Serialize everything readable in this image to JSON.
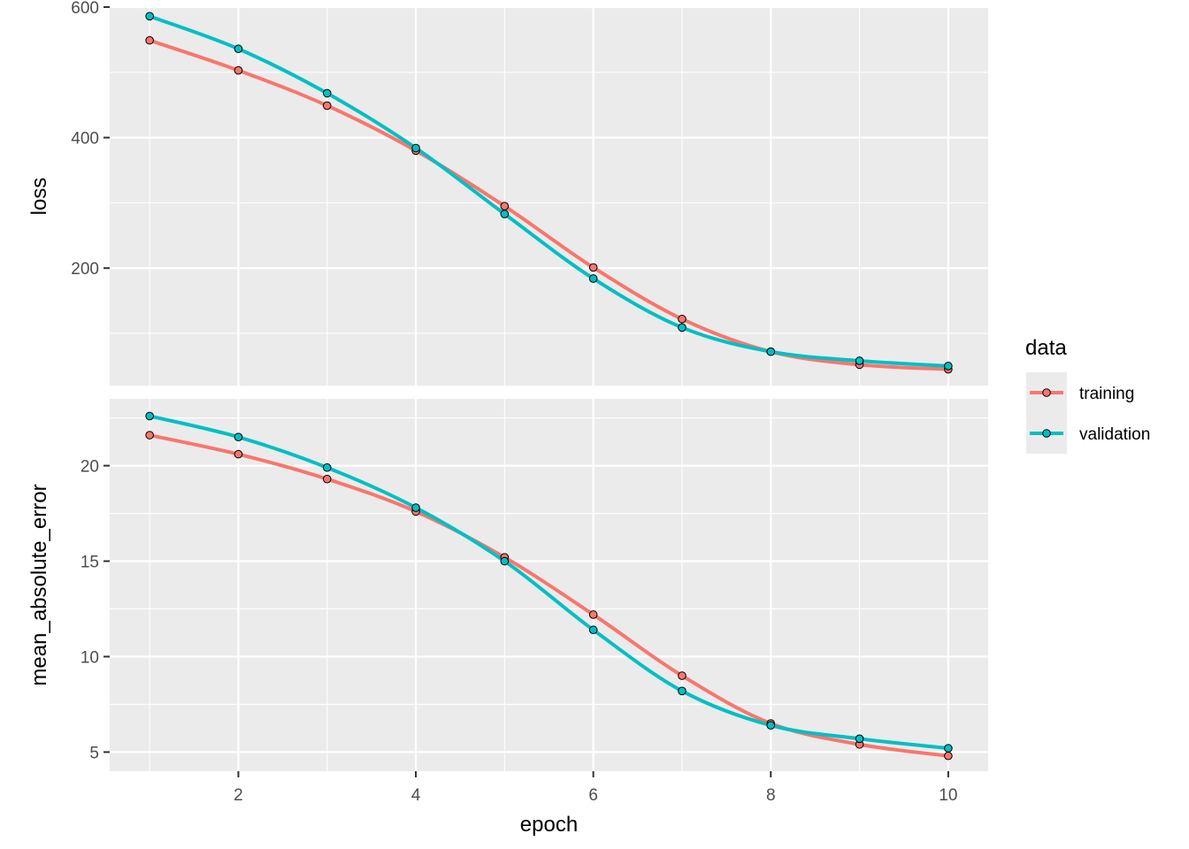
{
  "chart_data": {
    "type": "line",
    "xlabel": "epoch",
    "x_ticks": [
      2,
      4,
      6,
      8,
      10
    ],
    "xlim": [
      0.55,
      10.45
    ],
    "legend": {
      "title": "data",
      "position": "right",
      "entries": [
        {
          "label": "training",
          "color": "#F8766D"
        },
        {
          "label": "validation",
          "color": "#00BFC4"
        }
      ]
    },
    "background": "#EBEBEB",
    "grid": true,
    "facets": [
      {
        "ylabel": "loss",
        "ylim": [
          20,
          600
        ],
        "y_ticks": [
          200,
          400,
          600
        ],
        "x": [
          1,
          2,
          3,
          4,
          5,
          6,
          7,
          8,
          9,
          10
        ],
        "series": [
          {
            "name": "training",
            "color": "#F8766D",
            "values": [
              549,
              503,
              449,
              380,
              295,
              201,
              122,
              72,
              52,
              45
            ]
          },
          {
            "name": "validation",
            "color": "#00BFC4",
            "values": [
              586,
              536,
              468,
              384,
              283,
              184,
              109,
              72,
              58,
              50
            ]
          }
        ]
      },
      {
        "ylabel": "mean_absolute_error",
        "ylim": [
          4,
          23.5
        ],
        "y_ticks": [
          5,
          10,
          15,
          20
        ],
        "x": [
          1,
          2,
          3,
          4,
          5,
          6,
          7,
          8,
          9,
          10
        ],
        "series": [
          {
            "name": "training",
            "color": "#F8766D",
            "values": [
              21.6,
              20.6,
              19.3,
              17.6,
              15.2,
              12.2,
              9.0,
              6.5,
              5.4,
              4.8
            ]
          },
          {
            "name": "validation",
            "color": "#00BFC4",
            "values": [
              22.6,
              21.5,
              19.9,
              17.8,
              15.0,
              11.4,
              8.2,
              6.4,
              5.7,
              5.2
            ]
          }
        ]
      }
    ]
  }
}
